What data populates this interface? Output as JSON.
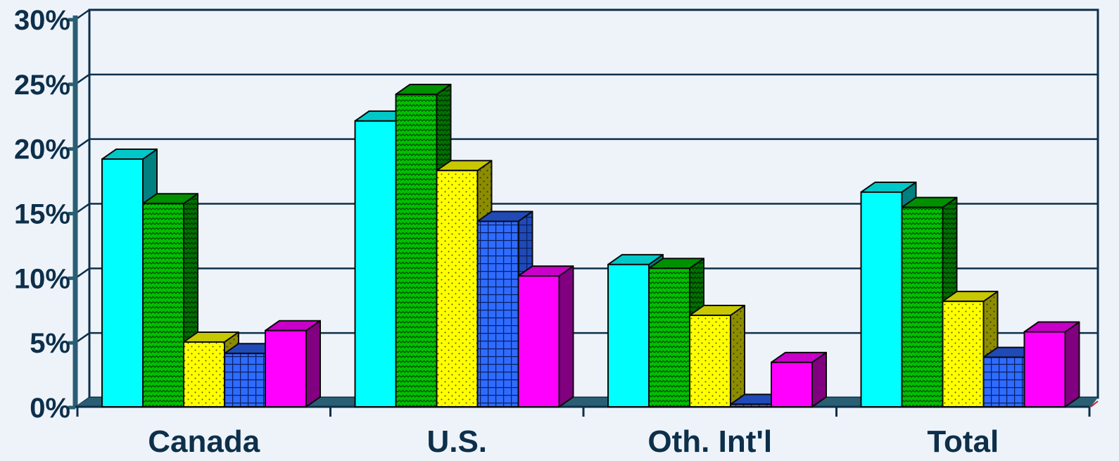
{
  "chart_data": {
    "type": "bar",
    "style": "3d-clustered",
    "categories": [
      "Canada",
      "U.S.",
      "Oth. Int'l",
      "Total"
    ],
    "series": [
      {
        "values": [
          19.5,
          22.5,
          11.2,
          16.9
        ],
        "color": "#00ffff",
        "pattern": "solid"
      },
      {
        "values": [
          16.0,
          24.6,
          10.9,
          15.7
        ],
        "color": "#00c000",
        "pattern": "zigzag"
      },
      {
        "values": [
          5.1,
          18.6,
          7.2,
          8.3
        ],
        "color": "#ffff00",
        "pattern": "dots"
      },
      {
        "values": [
          4.2,
          14.6,
          0.2,
          3.9
        ],
        "color": "#2e6bff",
        "pattern": "grid"
      },
      {
        "values": [
          6.0,
          10.3,
          3.5,
          5.9
        ],
        "color": "#ff00ff",
        "pattern": "solid"
      }
    ],
    "y_tick_labels": [
      "0%",
      "5%",
      "10%",
      "15%",
      "20%",
      "25%",
      "30%"
    ],
    "ylim": [
      0,
      30
    ],
    "title": "",
    "xlabel": "",
    "ylabel": "",
    "grid": true,
    "legend": "none",
    "background_color": "#eef3fa",
    "axis_color": "#2a5f73"
  }
}
